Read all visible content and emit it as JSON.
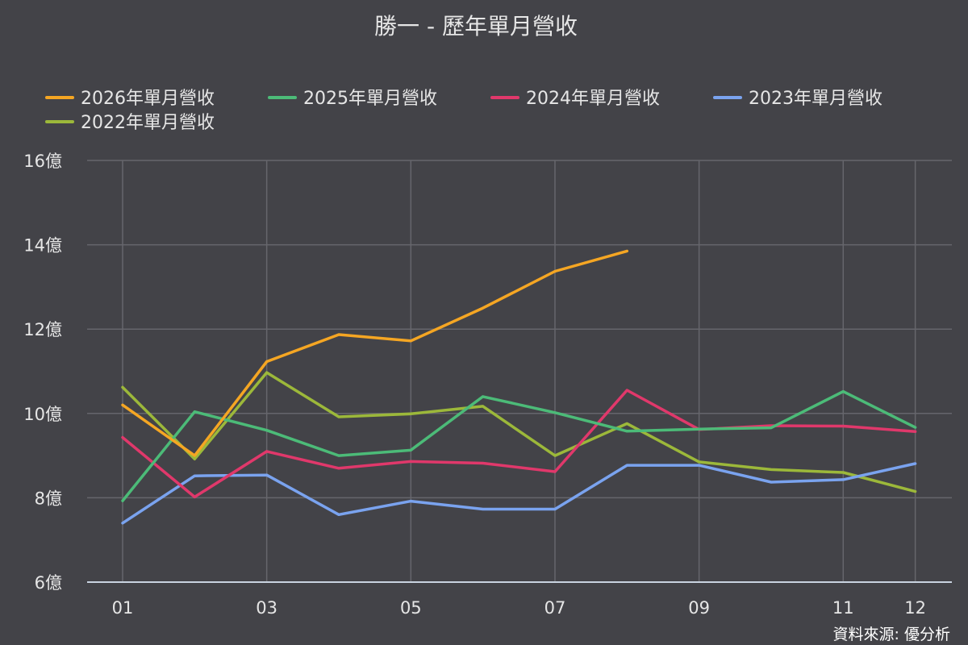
{
  "chart_data": {
    "type": "line",
    "title": "勝一 - 歷年單月營收",
    "source": "資料來源: 優分析",
    "x": [
      "01",
      "02",
      "03",
      "04",
      "05",
      "06",
      "07",
      "08",
      "09",
      "10",
      "11",
      "12"
    ],
    "x_tick_labels": [
      "01",
      "03",
      "05",
      "07",
      "09",
      "11",
      "12"
    ],
    "y_tick_labels": [
      "6億",
      "8億",
      "10億",
      "12億",
      "14億",
      "16億"
    ],
    "y_unit": "億",
    "ylim": [
      6,
      16
    ],
    "grid": true,
    "legend_position": "top",
    "series": [
      {
        "name": "2026年單月營收",
        "color": "#f5a623",
        "values": [
          10.2,
          9.0,
          11.23,
          11.87,
          11.72,
          12.5,
          13.37,
          13.85,
          null,
          null,
          null,
          null
        ]
      },
      {
        "name": "2025年單月營收",
        "color": "#4cbb78",
        "values": [
          7.93,
          10.04,
          9.6,
          9.0,
          9.13,
          10.4,
          10.02,
          9.58,
          9.63,
          9.66,
          10.52,
          9.67
        ]
      },
      {
        "name": "2024年單月營收",
        "color": "#e0386b",
        "values": [
          9.43,
          8.02,
          9.1,
          8.7,
          8.86,
          8.82,
          8.62,
          10.55,
          9.62,
          9.71,
          9.7,
          9.57
        ]
      },
      {
        "name": "2023年單月營收",
        "color": "#7aa3ef",
        "values": [
          7.4,
          8.52,
          8.54,
          7.6,
          7.92,
          7.73,
          7.73,
          8.77,
          8.77,
          8.37,
          8.43,
          8.81
        ]
      },
      {
        "name": "2022年單月營收",
        "color": "#9cb83a",
        "values": [
          10.62,
          8.92,
          10.97,
          9.92,
          9.99,
          10.17,
          9.0,
          9.76,
          8.85,
          8.67,
          8.6,
          8.15
        ]
      }
    ]
  }
}
